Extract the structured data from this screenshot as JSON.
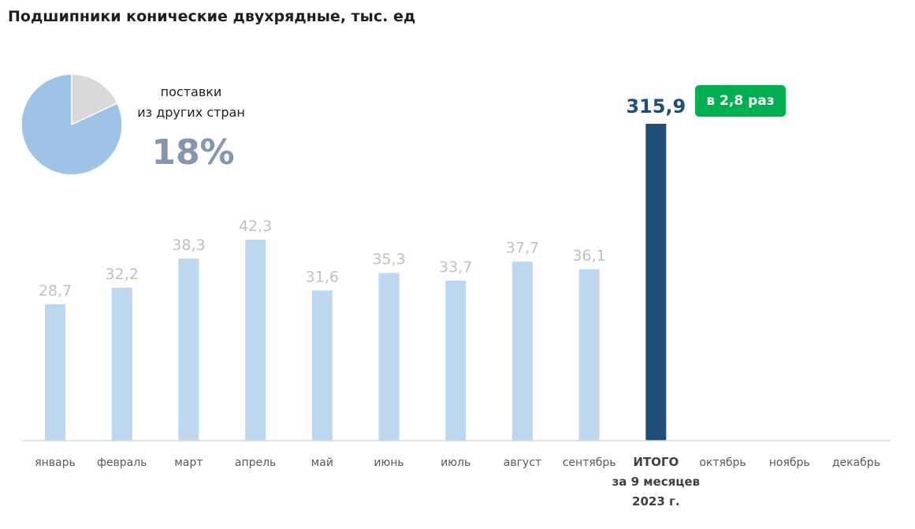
{
  "chart_data": {
    "type": "bar",
    "title": "Подшипники конические двухрядные, тыс. ед",
    "categories": [
      "январь",
      "февраль",
      "март",
      "апрель",
      "май",
      "июнь",
      "июль",
      "август",
      "сентябрь",
      "ИТОГО\nза 9 месяцев\n2023 г.",
      "октябрь",
      "ноябрь",
      "декабрь"
    ],
    "values": [
      28.7,
      32.2,
      38.3,
      42.3,
      31.6,
      35.3,
      33.7,
      37.7,
      36.1,
      315.9,
      null,
      null,
      null
    ],
    "value_labels": [
      "28,7",
      "32,2",
      "38,3",
      "42,3",
      "31,6",
      "35,3",
      "33,7",
      "37,7",
      "36,1",
      "315,9",
      "",
      "",
      ""
    ],
    "highlight_index": 9,
    "colors": {
      "bar": "#bdd7ee",
      "total_bar": "#1f4e79",
      "label": "#c0c0c0",
      "total_label": "#1f4e79",
      "axis": "#d9d9d9"
    },
    "pie": {
      "type": "pie",
      "caption": "поставки\nиз других стран",
      "percent_label": "18%",
      "slices": [
        {
          "value": 18,
          "color": "#d9d9d9"
        },
        {
          "value": 82,
          "color": "#9dc3e6"
        }
      ]
    },
    "badge": {
      "text": "в 2,8 раз",
      "color": "#00b050"
    }
  }
}
